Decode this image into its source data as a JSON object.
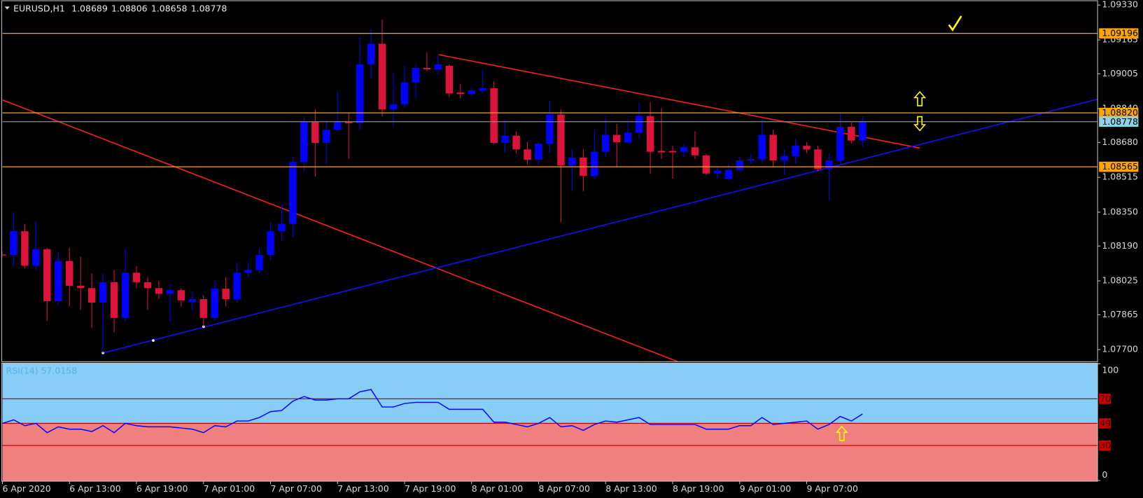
{
  "chart_data": [
    {
      "type": "candlestick",
      "title": "EURUSD,H1",
      "categories": [
        "6 Apr 2020",
        null,
        null,
        null,
        null,
        null,
        "6 Apr 13:00",
        null,
        null,
        null,
        null,
        null,
        "6 Apr 19:00",
        null,
        null,
        null,
        null,
        null,
        "7 Apr 01:00",
        null,
        null,
        null,
        null,
        null,
        "7 Apr 07:00",
        null,
        null,
        null,
        null,
        null,
        "7 Apr 13:00",
        null,
        null,
        null,
        null,
        null,
        "7 Apr 19:00",
        null,
        null,
        null,
        null,
        null,
        "8 Apr 01:00",
        null,
        null,
        null,
        null,
        null,
        "8 Apr 07:00",
        null,
        null,
        null,
        null,
        null,
        "8 Apr 13:00",
        null,
        null,
        null,
        null,
        null,
        "8 Apr 19:00",
        null,
        null,
        null,
        null,
        null,
        "9 Apr 01:00",
        null,
        null,
        null,
        null,
        null,
        "9 Apr 07:00",
        null,
        null,
        null,
        null,
        null
      ],
      "open": [
        1.0815,
        1.08147,
        1.0826,
        1.08098,
        1.08174,
        1.07929,
        1.08119,
        1.08002,
        1.07991,
        1.07922,
        1.08019,
        1.0785,
        1.08064,
        1.08019,
        1.07991,
        1.07964,
        1.07981,
        1.07926,
        1.07939,
        1.0785,
        1.07988,
        1.07939,
        1.08064,
        1.08077,
        1.08147,
        1.0826,
        1.08295,
        1.08588,
        1.08778,
        1.08678,
        1.0874,
        1.08778,
        1.08771,
        1.0905,
        1.09147,
        1.08836,
        1.08861,
        1.08964,
        1.09033,
        1.09026,
        1.09043,
        1.08916,
        1.08909,
        1.08926,
        1.08937,
        1.08678,
        1.08712,
        1.08647,
        1.08598,
        1.08674,
        1.08812,
        1.08571,
        1.08609,
        1.08522,
        1.08636,
        1.08716,
        1.08681,
        1.08726,
        1.08805,
        1.0864,
        1.0864,
        1.08636,
        1.08657,
        1.08619,
        1.08533,
        1.08509,
        1.0855,
        1.08595,
        1.08602,
        1.08716,
        1.08595,
        1.08616,
        1.08664,
        1.08647,
        1.08554,
        1.08595,
        1.08754,
        1.08689
      ],
      "high": [
        1.08165,
        1.0835,
        1.08295,
        1.08309,
        1.08181,
        1.08164,
        1.08181,
        1.0814,
        1.0806,
        1.0806,
        1.08077,
        1.08178,
        1.08095,
        1.08043,
        1.08026,
        1.08008,
        1.07991,
        1.07974,
        1.07957,
        1.08026,
        1.08043,
        1.08112,
        1.08112,
        1.08181,
        1.08302,
        1.08388,
        1.08612,
        1.08802,
        1.08836,
        1.08785,
        1.08923,
        1.08819,
        1.09175,
        1.09216,
        1.09261,
        1.09009,
        1.09043,
        1.0905,
        1.09106,
        1.09095,
        1.0905,
        1.08957,
        1.0894,
        1.09026,
        1.08968,
        1.08785,
        1.08733,
        1.08681,
        1.08681,
        1.08878,
        1.08836,
        1.08647,
        1.08647,
        1.0874,
        1.08802,
        1.08767,
        1.08792,
        1.08871,
        1.08871,
        1.08843,
        1.08664,
        1.08671,
        1.08733,
        1.08626,
        1.08567,
        1.08578,
        1.08612,
        1.08623,
        1.08785,
        1.0874,
        1.08647,
        1.08698,
        1.08681,
        1.08664,
        1.0863,
        1.08819,
        1.08774,
        1.08806
      ],
      "low": [
        1.0814,
        1.08095,
        1.08084,
        1.08077,
        1.07836,
        1.07905,
        1.07905,
        1.07888,
        1.07801,
        1.07684,
        1.07781,
        1.07836,
        1.07991,
        1.07888,
        1.07939,
        1.07836,
        1.07905,
        1.07888,
        1.07808,
        1.07836,
        1.07905,
        1.07922,
        1.08043,
        1.0806,
        1.08122,
        1.08215,
        1.08233,
        1.08543,
        1.08519,
        1.08578,
        1.08733,
        1.08602,
        1.0874,
        1.08981,
        1.08802,
        1.08757,
        1.08843,
        1.08888,
        1.09016,
        1.09002,
        1.08895,
        1.08888,
        1.08899,
        1.08912,
        1.08671,
        1.0863,
        1.0863,
        1.08578,
        1.08578,
        1.0863,
        1.08302,
        1.0845,
        1.0845,
        1.08509,
        1.08612,
        1.08567,
        1.08678,
        1.08698,
        1.08533,
        1.08602,
        1.08509,
        1.08612,
        1.08602,
        1.08526,
        1.08509,
        1.08502,
        1.08543,
        1.08578,
        1.08588,
        1.08567,
        1.08526,
        1.08578,
        1.0863,
        1.08543,
        1.08405,
        1.08578,
        1.08674,
        1.08658
      ],
      "close": [
        1.08147,
        1.0826,
        1.08098,
        1.08174,
        1.07929,
        1.08119,
        1.08002,
        1.07991,
        1.07922,
        1.08019,
        1.0785,
        1.08064,
        1.08019,
        1.07991,
        1.07964,
        1.07981,
        1.07933,
        1.07939,
        1.0785,
        1.07988,
        1.07939,
        1.08064,
        1.08077,
        1.08147,
        1.0826,
        1.08295,
        1.08588,
        1.08778,
        1.08678,
        1.0874,
        1.08778,
        1.08771,
        1.0905,
        1.09147,
        1.08836,
        1.08861,
        1.08964,
        1.09033,
        1.09026,
        1.0905,
        1.08912,
        1.08909,
        1.08926,
        1.08937,
        1.08678,
        1.08712,
        1.08647,
        1.08598,
        1.08674,
        1.08812,
        1.08571,
        1.08609,
        1.08522,
        1.08636,
        1.08716,
        1.08681,
        1.08726,
        1.08805,
        1.08636,
        1.08633,
        1.08633,
        1.08657,
        1.08619,
        1.08533,
        1.08547,
        1.0855,
        1.08595,
        1.08602,
        1.08716,
        1.08595,
        1.08616,
        1.08664,
        1.08647,
        1.08554,
        1.08595,
        1.08754,
        1.08689,
        1.08778
      ],
      "up_color": "#0000ff",
      "down_color": "#dc143c",
      "ylim": [
        1.07643,
        1.09347
      ],
      "yticks": [
        {
          "value": 1.0933,
          "label": "1.09330"
        },
        1.09165,
        1.09005,
        {
          "value": 1.0884,
          "label": "1.08840"
        },
        {
          "value": 1.0868,
          "label": "1.08680"
        },
        1.08515,
        {
          "value": 1.0835,
          "label": "1.08350"
        },
        {
          "value": 1.0819,
          "label": "1.08190"
        },
        1.08025,
        1.07865,
        {
          "value": 1.077,
          "label": "1.07700"
        }
      ],
      "grid": false,
      "levels": [
        {
          "value": 1.09196,
          "color": "#ffa500"
        },
        {
          "value": 1.0882,
          "label": "1.08820",
          "color": "#ffa500"
        },
        {
          "value": 1.08565,
          "color": "#ffa500"
        }
      ],
      "last_price_color": "#8fd3e8"
    },
    {
      "type": "line",
      "title": "RSI(14) 57.0158",
      "values": [
        49,
        52,
        47,
        49,
        41,
        46,
        44,
        44,
        42,
        47,
        41,
        49,
        47,
        46,
        46,
        46,
        45,
        44,
        41,
        47,
        46,
        51,
        51,
        54,
        59,
        60,
        68,
        72,
        69,
        69,
        70,
        70,
        76,
        78,
        63,
        63,
        66,
        67,
        67,
        67,
        61,
        61,
        61,
        61,
        50,
        50,
        48,
        46,
        49,
        54,
        46,
        47,
        43,
        48,
        51,
        50,
        52,
        54,
        48,
        48,
        48,
        48,
        48,
        44,
        44,
        44,
        47,
        47,
        54,
        48,
        49,
        50,
        51,
        44,
        48,
        55,
        51,
        57.0158
      ],
      "color": "#0000ff",
      "ylim": [
        0,
        100
      ],
      "yticks": [
        100,
        0
      ],
      "levels": [
        70,
        49,
        30
      ],
      "level_color": "#cc0000",
      "upper_fill": "#87cdf8",
      "lower_fill": "#f08080"
    }
  ]
}
